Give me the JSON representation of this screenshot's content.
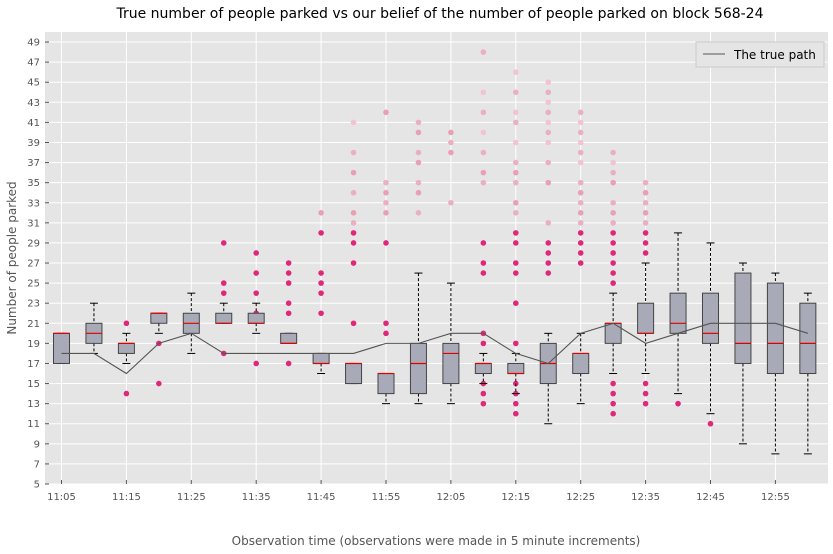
{
  "chart_data": {
    "type": "box",
    "title": "True number of people parked vs our belief of the number of people parked on block 568-24",
    "xlabel": "Observation time (observations were made in 5 minute increments)",
    "ylabel": "Number of people parked",
    "ylim": [
      5,
      50
    ],
    "yticks": [
      5,
      7,
      9,
      11,
      13,
      15,
      17,
      19,
      21,
      23,
      25,
      27,
      29,
      31,
      33,
      35,
      37,
      39,
      41,
      43,
      45,
      47,
      49
    ],
    "xtick_labels": [
      "11:05",
      "11:15",
      "11:25",
      "11:35",
      "11:45",
      "11:55",
      "12:05",
      "12:15",
      "12:25",
      "12:35",
      "12:45",
      "12:55"
    ],
    "times": [
      "11:05",
      "11:10",
      "11:15",
      "11:20",
      "11:25",
      "11:30",
      "11:35",
      "11:40",
      "11:45",
      "11:50",
      "11:55",
      "12:00",
      "12:05",
      "12:10",
      "12:15",
      "12:20",
      "12:25",
      "12:30",
      "12:35",
      "12:40",
      "12:45",
      "12:50",
      "12:55",
      "13:00"
    ],
    "true_path": [
      18,
      18,
      16,
      19,
      20,
      18,
      18,
      18,
      18,
      18,
      19,
      19,
      20,
      20,
      18,
      17,
      20,
      21,
      19,
      20,
      21,
      21,
      21,
      20
    ],
    "boxes": [
      {
        "wlo": 17,
        "q1": 17,
        "med": 20,
        "q3": 20,
        "whi": 20
      },
      {
        "wlo": 18,
        "q1": 19,
        "med": 20,
        "q3": 21,
        "whi": 23
      },
      {
        "wlo": 17,
        "q1": 18,
        "med": 19,
        "q3": 19,
        "whi": 20
      },
      {
        "wlo": 20,
        "q1": 21,
        "med": 22,
        "q3": 22,
        "whi": 22
      },
      {
        "wlo": 18,
        "q1": 20,
        "med": 21,
        "q3": 22,
        "whi": 24
      },
      {
        "wlo": 21,
        "q1": 21,
        "med": 21,
        "q3": 22,
        "whi": 23
      },
      {
        "wlo": 20,
        "q1": 21,
        "med": 21,
        "q3": 22,
        "whi": 23
      },
      {
        "wlo": 19,
        "q1": 19,
        "med": 19,
        "q3": 20,
        "whi": 20
      },
      {
        "wlo": 16,
        "q1": 17,
        "med": 17,
        "q3": 18,
        "whi": 18
      },
      {
        "wlo": 15,
        "q1": 15,
        "med": 17,
        "q3": 17,
        "whi": 17
      },
      {
        "wlo": 13,
        "q1": 14,
        "med": 16,
        "q3": 16,
        "whi": 16
      },
      {
        "wlo": 13,
        "q1": 14,
        "med": 17,
        "q3": 19,
        "whi": 26
      },
      {
        "wlo": 13,
        "q1": 15,
        "med": 18,
        "q3": 19,
        "whi": 25
      },
      {
        "wlo": 15,
        "q1": 16,
        "med": 17,
        "q3": 17,
        "whi": 18
      },
      {
        "wlo": 14,
        "q1": 16,
        "med": 16,
        "q3": 17,
        "whi": 18
      },
      {
        "wlo": 11,
        "q1": 15,
        "med": 17,
        "q3": 19,
        "whi": 20
      },
      {
        "wlo": 13,
        "q1": 16,
        "med": 18,
        "q3": 18,
        "whi": 20
      },
      {
        "wlo": 16,
        "q1": 19,
        "med": 21,
        "q3": 21,
        "whi": 24
      },
      {
        "wlo": 16,
        "q1": 20,
        "med": 20,
        "q3": 23,
        "whi": 27
      },
      {
        "wlo": 14,
        "q1": 20,
        "med": 21,
        "q3": 24,
        "whi": 30
      },
      {
        "wlo": 12,
        "q1": 19,
        "med": 20,
        "q3": 24,
        "whi": 29
      },
      {
        "wlo": 9,
        "q1": 17,
        "med": 19,
        "q3": 26,
        "whi": 27
      },
      {
        "wlo": 8,
        "q1": 16,
        "med": 19,
        "q3": 25,
        "whi": 26
      },
      {
        "wlo": 8,
        "q1": 16,
        "med": 19,
        "q3": 23,
        "whi": 24
      }
    ],
    "outliers": [
      [],
      [],
      [
        14,
        21
      ],
      [
        15,
        19
      ],
      [],
      [
        18,
        24,
        25,
        29
      ],
      [
        17,
        22,
        24,
        26,
        28
      ],
      [
        17,
        22,
        23,
        25,
        26,
        27
      ],
      [
        22,
        24,
        25,
        26,
        30,
        32
      ],
      [
        21,
        27,
        29,
        30,
        31,
        32,
        34,
        36,
        38,
        41
      ],
      [
        20,
        21,
        29,
        32,
        33,
        34,
        35,
        42
      ],
      [
        32,
        34,
        35,
        37,
        38,
        40,
        41
      ],
      [
        33,
        38,
        39,
        40
      ],
      [
        13,
        14,
        15,
        19,
        20,
        26,
        27,
        29,
        35,
        36,
        38,
        40,
        42,
        44,
        48
      ],
      [
        12,
        13,
        14,
        15,
        19,
        23,
        26,
        27,
        29,
        30,
        32,
        33,
        35,
        36,
        37,
        39,
        41,
        42,
        44,
        46
      ],
      [
        26,
        27,
        28,
        29,
        31,
        35,
        37,
        39,
        40,
        41,
        42,
        43,
        44,
        45
      ],
      [
        27,
        28,
        29,
        30,
        31,
        32,
        33,
        34,
        35,
        37,
        38,
        39,
        40,
        41,
        42
      ],
      [
        12,
        13,
        14,
        15,
        25,
        26,
        27,
        28,
        29,
        30,
        31,
        32,
        33,
        35,
        36,
        37,
        38
      ],
      [
        13,
        14,
        15,
        28,
        29,
        30,
        31,
        32,
        33,
        34,
        35
      ],
      [
        13
      ],
      [
        11
      ],
      [],
      [],
      []
    ],
    "legend": {
      "label": "The true path",
      "position": "top-right"
    },
    "grid": true
  }
}
